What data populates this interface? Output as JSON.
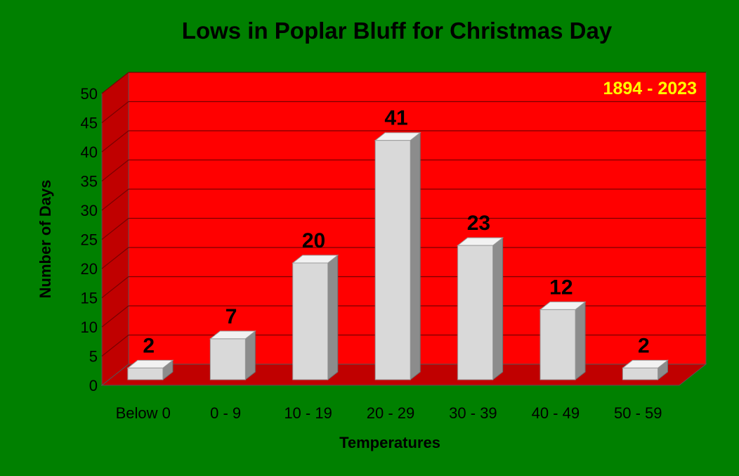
{
  "chart_data": {
    "type": "bar",
    "title": "Lows in Poplar Bluff for Christmas Day",
    "annotation": "1894 - 2023",
    "xlabel": "Temperatures",
    "ylabel": "Number of Days",
    "categories": [
      "Below 0",
      "0 - 9",
      "10 - 19",
      "20 - 29",
      "30 - 39",
      "40 - 49",
      "50 - 59"
    ],
    "values": [
      2,
      7,
      20,
      41,
      23,
      12,
      2
    ],
    "ylim": [
      0,
      50
    ],
    "yticks": [
      "0",
      "5",
      "10",
      "15",
      "20",
      "25",
      "30",
      "35",
      "40",
      "45",
      "50"
    ],
    "grid": true,
    "legend": "none",
    "three_d": true,
    "colors": {
      "background": "#008000",
      "plot_wall": "#FF0000",
      "side_wall": "#C00000",
      "floor": "#C00000",
      "bar_front": "#D9D9D9",
      "bar_side": "#8C8C8C",
      "bar_top": "#F2F2F2",
      "annotation": "#FFFF00",
      "text": "#000000"
    }
  }
}
